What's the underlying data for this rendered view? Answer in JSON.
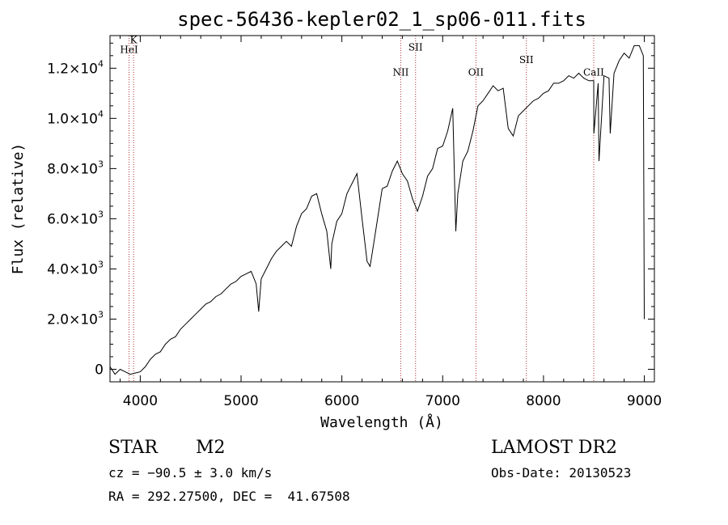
{
  "chart_data": {
    "type": "line",
    "title": "spec-56436-kepler02_1_sp06-011.fits",
    "xlabel": "Wavelength (Å)",
    "ylabel": "Flux (relative)",
    "xlim": [
      3700,
      9100
    ],
    "ylim": [
      -500,
      13300
    ],
    "x_ticks": [
      {
        "value": 4000,
        "label": "4000"
      },
      {
        "value": 5000,
        "label": "5000"
      },
      {
        "value": 6000,
        "label": "6000"
      },
      {
        "value": 7000,
        "label": "7000"
      },
      {
        "value": 8000,
        "label": "8000"
      },
      {
        "value": 9000,
        "label": "9000"
      }
    ],
    "y_ticks": [
      {
        "value": 0,
        "mantissa": "0",
        "exp": ""
      },
      {
        "value": 2000,
        "mantissa": "2.0×10",
        "exp": "3"
      },
      {
        "value": 4000,
        "mantissa": "4.0×10",
        "exp": "3"
      },
      {
        "value": 6000,
        "mantissa": "6.0×10",
        "exp": "3"
      },
      {
        "value": 8000,
        "mantissa": "8.0×10",
        "exp": "3"
      },
      {
        "value": 10000,
        "mantissa": "1.0×10",
        "exp": "4"
      },
      {
        "value": 12000,
        "mantissa": "1.2×10",
        "exp": "4"
      }
    ],
    "grid": false,
    "line_color": "#000000",
    "marker_color": "#b03030",
    "lines": [
      {
        "name": "HeI",
        "x": 3889,
        "label_y": 12600
      },
      {
        "name": "K",
        "x": 3934,
        "label_y": 13000
      },
      {
        "name": "NII",
        "x": 6584,
        "label_y": 11700
      },
      {
        "name": "SII",
        "x": 6731,
        "label_y": 12700
      },
      {
        "name": "OII",
        "x": 7330,
        "label_y": 11700
      },
      {
        "name": "SII",
        "x": 7830,
        "label_y": 12200
      },
      {
        "name": "CaII",
        "x": 8498,
        "label_y": 11700
      }
    ],
    "series": [
      {
        "x": [
          3700,
          3750,
          3800,
          3850,
          3900,
          3950,
          4000,
          4050,
          4100,
          4150,
          4200,
          4250,
          4300,
          4350,
          4400,
          4450,
          4500,
          4550,
          4600,
          4650,
          4700,
          4750,
          4800,
          4850,
          4900,
          4950,
          5000,
          5050,
          5100,
          5150,
          5175,
          5200,
          5250,
          5300,
          5350,
          5400,
          5450,
          5500,
          5550,
          5600,
          5650,
          5700,
          5750,
          5800,
          5850,
          5890,
          5900,
          5950,
          6000,
          6050,
          6100,
          6150,
          6200,
          6250,
          6280,
          6300,
          6350,
          6400,
          6450,
          6500,
          6550,
          6600,
          6650,
          6700,
          6750,
          6800,
          6850,
          6900,
          6950,
          7000,
          7050,
          7100,
          7130,
          7150,
          7200,
          7250,
          7300,
          7350,
          7400,
          7450,
          7500,
          7550,
          7600,
          7650,
          7700,
          7750,
          7800,
          7850,
          7900,
          7950,
          8000,
          8050,
          8100,
          8150,
          8200,
          8250,
          8300,
          8350,
          8400,
          8450,
          8498,
          8500,
          8542,
          8550,
          8600,
          8650,
          8662,
          8700,
          8750,
          8800,
          8850,
          8900,
          8950,
          8990,
          9000
        ],
        "y": [
          100,
          -200,
          0,
          -100,
          -200,
          -150,
          -100,
          100,
          400,
          600,
          700,
          1000,
          1200,
          1300,
          1600,
          1800,
          2000,
          2200,
          2400,
          2600,
          2700,
          2900,
          3000,
          3200,
          3400,
          3500,
          3700,
          3800,
          3900,
          3400,
          2300,
          3600,
          4000,
          4400,
          4700,
          4900,
          5100,
          4900,
          5700,
          6200,
          6400,
          6900,
          7000,
          6200,
          5500,
          4000,
          5000,
          5900,
          6200,
          7000,
          7400,
          7800,
          6000,
          4300,
          4100,
          4600,
          5900,
          7200,
          7300,
          7900,
          8300,
          7800,
          7500,
          6800,
          6300,
          6900,
          7700,
          8000,
          8800,
          8900,
          9500,
          10400,
          5500,
          7000,
          8300,
          8700,
          9500,
          10500,
          10700,
          11000,
          11300,
          11100,
          11200,
          9600,
          9300,
          10100,
          10300,
          10500,
          10700,
          10800,
          11000,
          11100,
          11400,
          11400,
          11500,
          11700,
          11600,
          11800,
          11600,
          11500,
          11500,
          9400,
          11400,
          8300,
          11700,
          11600,
          9400,
          11800,
          12300,
          12600,
          12400,
          12900,
          12900,
          12500,
          2000
        ]
      }
    ]
  },
  "footer": {
    "object_class": "STAR",
    "subclass": "M2",
    "survey": "LAMOST DR2",
    "cz": "cz = −90.5 ± 3.0 km/s",
    "obs_date": "Obs-Date: 20130523",
    "radec": "RA = 292.27500, DEC =  41.67508"
  }
}
